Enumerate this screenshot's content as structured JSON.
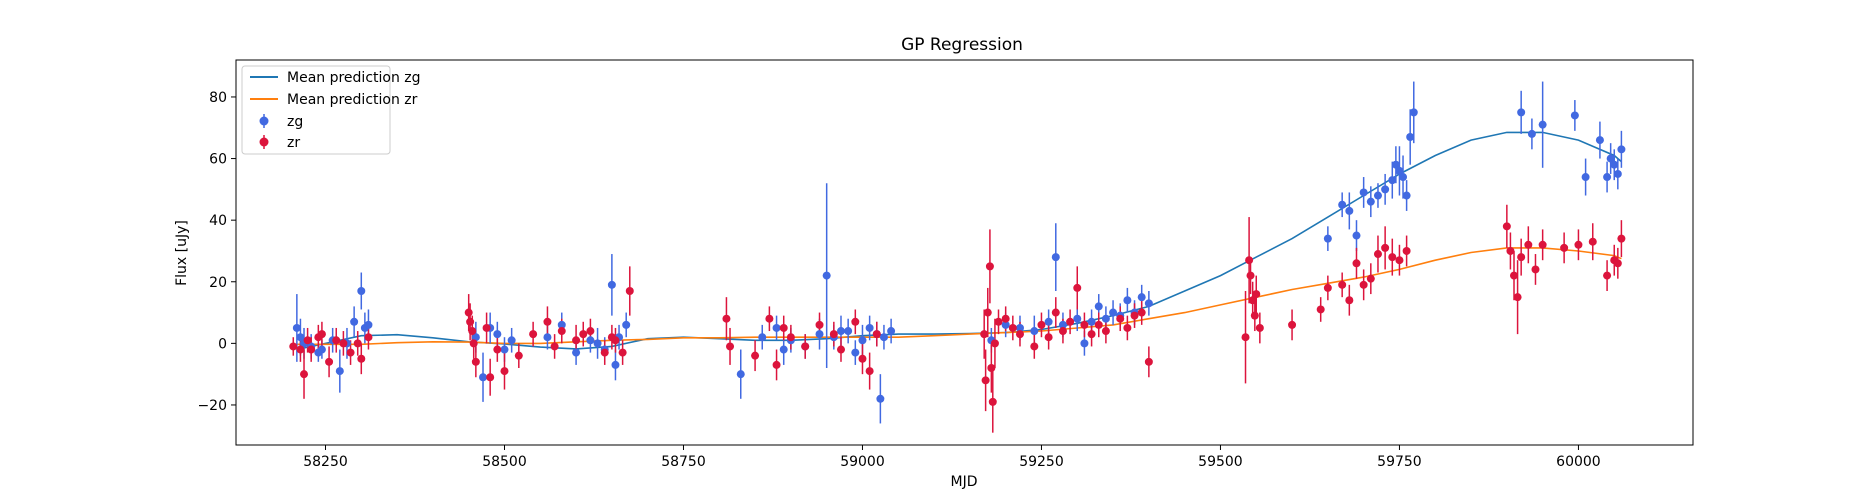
{
  "chart_data": {
    "type": "scatter",
    "title": "GP Regression",
    "xlabel": "MJD",
    "ylabel": "Flux [uJy]",
    "xlim": [
      58125,
      60160
    ],
    "ylim": [
      -33,
      92
    ],
    "xticks": [
      58250,
      58500,
      58750,
      59000,
      59250,
      59500,
      59750,
      60000
    ],
    "yticks": [
      -20,
      0,
      20,
      40,
      60,
      80
    ],
    "grid": false,
    "legend": "top-left",
    "colors": {
      "zg_points": "#4169e1",
      "zr_points": "#dc143c",
      "zg_line": "#1f77b4",
      "zr_line": "#ff7f0e"
    },
    "lines": [
      {
        "name": "Mean prediction zg",
        "x": [
          58210,
          58250,
          58300,
          58350,
          58400,
          58450,
          58500,
          58550,
          58600,
          58650,
          58700,
          58750,
          58800,
          58850,
          58900,
          58950,
          59000,
          59050,
          59100,
          59150,
          59200,
          59250,
          59300,
          59350,
          59400,
          59450,
          59500,
          59550,
          59600,
          59650,
          59700,
          59750,
          59800,
          59850,
          59900,
          59950,
          60000,
          60050,
          60060
        ],
        "y": [
          -2,
          0,
          2.5,
          2.8,
          1.8,
          0.5,
          -0.2,
          -1.2,
          -1.8,
          -1.0,
          1.5,
          2.0,
          1.5,
          1.0,
          1.0,
          1.5,
          2.5,
          3.0,
          3.0,
          3.2,
          3.5,
          4.5,
          6.5,
          9.0,
          12.0,
          17.0,
          22.0,
          28.0,
          34.0,
          41.0,
          48.0,
          55.0,
          61.0,
          66.0,
          68.5,
          68.5,
          66.0,
          61.0,
          59.0
        ]
      },
      {
        "name": "Mean prediction zr",
        "x": [
          58210,
          58250,
          58300,
          58350,
          58400,
          58450,
          58500,
          58550,
          58600,
          58650,
          58700,
          58750,
          58800,
          58850,
          58900,
          58950,
          59000,
          59050,
          59100,
          59150,
          59200,
          59250,
          59300,
          59350,
          59400,
          59450,
          59500,
          59550,
          59600,
          59650,
          59700,
          59750,
          59800,
          59850,
          59900,
          59950,
          60000,
          60050,
          60060
        ],
        "y": [
          -0.3,
          -0.3,
          -0.3,
          0.2,
          0.5,
          0.4,
          0.0,
          0.0,
          0.5,
          1.0,
          1.3,
          1.8,
          1.8,
          2.0,
          2.0,
          2.0,
          2.0,
          2.0,
          2.5,
          3.0,
          3.5,
          4.0,
          5.0,
          6.0,
          8.0,
          10.0,
          12.5,
          15.0,
          17.5,
          19.5,
          21.5,
          24.0,
          27.0,
          29.5,
          31.0,
          31.0,
          30.0,
          28.5,
          27.5
        ]
      }
    ],
    "series": [
      {
        "name": "zg",
        "points": [
          [
            58210,
            5,
            11
          ],
          [
            58215,
            2,
            6
          ],
          [
            58220,
            0,
            5
          ],
          [
            58230,
            -1,
            4
          ],
          [
            58240,
            -3,
            3
          ],
          [
            58245,
            -2,
            3
          ],
          [
            58260,
            1,
            4
          ],
          [
            58270,
            -9,
            7
          ],
          [
            58280,
            0,
            5
          ],
          [
            58290,
            7,
            5
          ],
          [
            58300,
            17,
            6
          ],
          [
            58305,
            5,
            5
          ],
          [
            58310,
            6,
            5
          ],
          [
            58460,
            2,
            5
          ],
          [
            58470,
            -11,
            8
          ],
          [
            58480,
            5,
            5
          ],
          [
            58490,
            3,
            4
          ],
          [
            58500,
            -2,
            4
          ],
          [
            58510,
            1,
            4
          ],
          [
            58560,
            2,
            4
          ],
          [
            58580,
            6,
            4
          ],
          [
            58600,
            -3,
            4
          ],
          [
            58620,
            1,
            4
          ],
          [
            58630,
            0,
            5
          ],
          [
            58640,
            -2,
            4
          ],
          [
            58650,
            19,
            10
          ],
          [
            58655,
            -7,
            5
          ],
          [
            58660,
            2,
            4
          ],
          [
            58670,
            6,
            4
          ],
          [
            58830,
            -10,
            8
          ],
          [
            58860,
            2,
            4
          ],
          [
            58880,
            5,
            4
          ],
          [
            58890,
            -2,
            5
          ],
          [
            58900,
            1,
            4
          ],
          [
            58920,
            -1,
            4
          ],
          [
            58940,
            3,
            5
          ],
          [
            58950,
            22,
            30
          ],
          [
            58960,
            2,
            4
          ],
          [
            58970,
            4,
            5
          ],
          [
            58980,
            4,
            4
          ],
          [
            58990,
            -3,
            4
          ],
          [
            59000,
            1,
            5
          ],
          [
            59010,
            5,
            4
          ],
          [
            59020,
            3,
            4
          ],
          [
            59025,
            -18,
            8
          ],
          [
            59030,
            2,
            4
          ],
          [
            59040,
            4,
            4
          ],
          [
            59180,
            1,
            4
          ],
          [
            59200,
            6,
            4
          ],
          [
            59220,
            5,
            4
          ],
          [
            59240,
            4,
            5
          ],
          [
            59260,
            7,
            4
          ],
          [
            59270,
            28,
            11
          ],
          [
            59280,
            6,
            4
          ],
          [
            59300,
            8,
            4
          ],
          [
            59310,
            0,
            4
          ],
          [
            59320,
            7,
            4
          ],
          [
            59330,
            12,
            4
          ],
          [
            59340,
            8,
            4
          ],
          [
            59350,
            10,
            4
          ],
          [
            59360,
            9,
            4
          ],
          [
            59370,
            14,
            4
          ],
          [
            59380,
            10,
            4
          ],
          [
            59390,
            15,
            4
          ],
          [
            59400,
            13,
            4
          ],
          [
            59650,
            34,
            4
          ],
          [
            59670,
            45,
            4
          ],
          [
            59680,
            43,
            6
          ],
          [
            59690,
            35,
            5
          ],
          [
            59700,
            49,
            5
          ],
          [
            59710,
            46,
            5
          ],
          [
            59720,
            48,
            4
          ],
          [
            59730,
            50,
            5
          ],
          [
            59740,
            53,
            6
          ],
          [
            59745,
            58,
            6
          ],
          [
            59750,
            56,
            8
          ],
          [
            59755,
            54,
            7
          ],
          [
            59760,
            48,
            5
          ],
          [
            59765,
            67,
            9
          ],
          [
            59770,
            75,
            10
          ],
          [
            59920,
            75,
            7
          ],
          [
            59935,
            68,
            5
          ],
          [
            59950,
            71,
            14
          ],
          [
            59995,
            74,
            5
          ],
          [
            60010,
            54,
            6
          ],
          [
            60030,
            66,
            6
          ],
          [
            60040,
            54,
            5
          ],
          [
            60045,
            60,
            5
          ],
          [
            60050,
            58,
            5
          ],
          [
            60055,
            55,
            5
          ],
          [
            60060,
            63,
            6
          ]
        ]
      },
      {
        "name": "zr",
        "points": [
          [
            58205,
            -1,
            3
          ],
          [
            58215,
            -2,
            4
          ],
          [
            58220,
            -10,
            8
          ],
          [
            58225,
            1,
            4
          ],
          [
            58230,
            -2,
            4
          ],
          [
            58240,
            2,
            4
          ],
          [
            58245,
            3,
            4
          ],
          [
            58255,
            -6,
            5
          ],
          [
            58265,
            1,
            4
          ],
          [
            58275,
            0,
            4
          ],
          [
            58285,
            -3,
            4
          ],
          [
            58295,
            0,
            4
          ],
          [
            58300,
            -5,
            5
          ],
          [
            58310,
            2,
            4
          ],
          [
            58450,
            10,
            6
          ],
          [
            58452,
            7,
            6
          ],
          [
            58455,
            4,
            5
          ],
          [
            58457,
            0,
            5
          ],
          [
            58460,
            -6,
            5
          ],
          [
            58475,
            5,
            5
          ],
          [
            58480,
            -11,
            6
          ],
          [
            58490,
            -2,
            4
          ],
          [
            58500,
            -9,
            6
          ],
          [
            58520,
            -4,
            4
          ],
          [
            58540,
            3,
            4
          ],
          [
            58560,
            7,
            5
          ],
          [
            58570,
            -1,
            4
          ],
          [
            58580,
            4,
            4
          ],
          [
            58600,
            1,
            5
          ],
          [
            58610,
            3,
            4
          ],
          [
            58620,
            4,
            4
          ],
          [
            58640,
            -3,
            4
          ],
          [
            58650,
            2,
            4
          ],
          [
            58655,
            1,
            4
          ],
          [
            58665,
            -3,
            4
          ],
          [
            58675,
            17,
            8
          ],
          [
            58810,
            8,
            7
          ],
          [
            58815,
            -1,
            6
          ],
          [
            58850,
            -4,
            5
          ],
          [
            58870,
            8,
            4
          ],
          [
            58880,
            -7,
            5
          ],
          [
            58890,
            5,
            4
          ],
          [
            58900,
            2,
            4
          ],
          [
            58920,
            -1,
            4
          ],
          [
            58940,
            6,
            4
          ],
          [
            58960,
            3,
            4
          ],
          [
            58970,
            -2,
            4
          ],
          [
            58990,
            7,
            4
          ],
          [
            59000,
            -5,
            5
          ],
          [
            59010,
            -9,
            6
          ],
          [
            59020,
            3,
            4
          ],
          [
            59170,
            3,
            8
          ],
          [
            59172,
            -12,
            10
          ],
          [
            59175,
            10,
            8
          ],
          [
            59178,
            25,
            12
          ],
          [
            59180,
            -8,
            8
          ],
          [
            59182,
            -19,
            10
          ],
          [
            59185,
            0,
            8
          ],
          [
            59190,
            7,
            4
          ],
          [
            59200,
            8,
            4
          ],
          [
            59210,
            5,
            4
          ],
          [
            59220,
            3,
            4
          ],
          [
            59240,
            -1,
            4
          ],
          [
            59250,
            6,
            4
          ],
          [
            59260,
            2,
            4
          ],
          [
            59270,
            10,
            5
          ],
          [
            59280,
            4,
            4
          ],
          [
            59290,
            7,
            4
          ],
          [
            59300,
            18,
            7
          ],
          [
            59310,
            6,
            4
          ],
          [
            59320,
            3,
            4
          ],
          [
            59330,
            6,
            4
          ],
          [
            59340,
            4,
            4
          ],
          [
            59360,
            8,
            4
          ],
          [
            59370,
            5,
            4
          ],
          [
            59380,
            9,
            4
          ],
          [
            59390,
            10,
            4
          ],
          [
            59400,
            -6,
            5
          ],
          [
            59535,
            2,
            15
          ],
          [
            59540,
            27,
            14
          ],
          [
            59542,
            22,
            6
          ],
          [
            59545,
            14,
            6
          ],
          [
            59548,
            9,
            5
          ],
          [
            59550,
            16,
            6
          ],
          [
            59555,
            5,
            5
          ],
          [
            59600,
            6,
            5
          ],
          [
            59640,
            11,
            4
          ],
          [
            59650,
            18,
            4
          ],
          [
            59670,
            19,
            4
          ],
          [
            59680,
            14,
            5
          ],
          [
            59690,
            26,
            5
          ],
          [
            59700,
            19,
            5
          ],
          [
            59710,
            21,
            5
          ],
          [
            59720,
            29,
            6
          ],
          [
            59730,
            31,
            7
          ],
          [
            59740,
            28,
            6
          ],
          [
            59750,
            27,
            5
          ],
          [
            59760,
            30,
            5
          ],
          [
            59900,
            38,
            7
          ],
          [
            59905,
            30,
            6
          ],
          [
            59910,
            22,
            8
          ],
          [
            59915,
            15,
            12
          ],
          [
            59920,
            28,
            6
          ],
          [
            59930,
            32,
            6
          ],
          [
            59940,
            24,
            5
          ],
          [
            59950,
            32,
            5
          ],
          [
            59980,
            31,
            5
          ],
          [
            60000,
            32,
            5
          ],
          [
            60020,
            33,
            6
          ],
          [
            60040,
            22,
            5
          ],
          [
            60050,
            27,
            5
          ],
          [
            60055,
            26,
            5
          ],
          [
            60060,
            34,
            6
          ]
        ]
      }
    ]
  }
}
